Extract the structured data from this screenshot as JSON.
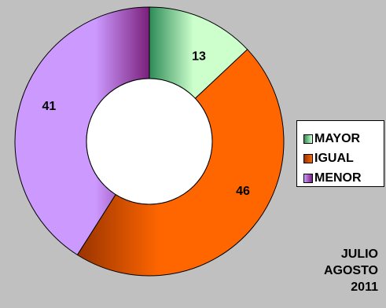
{
  "chart_data": {
    "type": "donut",
    "series": [
      {
        "name": "MAYOR",
        "value": 13,
        "color": "#ccffcc"
      },
      {
        "name": "IGUAL",
        "value": 46,
        "color": "#ff6600"
      },
      {
        "name": "MENOR",
        "value": 41,
        "color": "#cc99ff"
      }
    ],
    "legend_position": "right"
  },
  "caption": {
    "line1": "JULIO",
    "line2": "AGOSTO",
    "line3": "2011"
  }
}
